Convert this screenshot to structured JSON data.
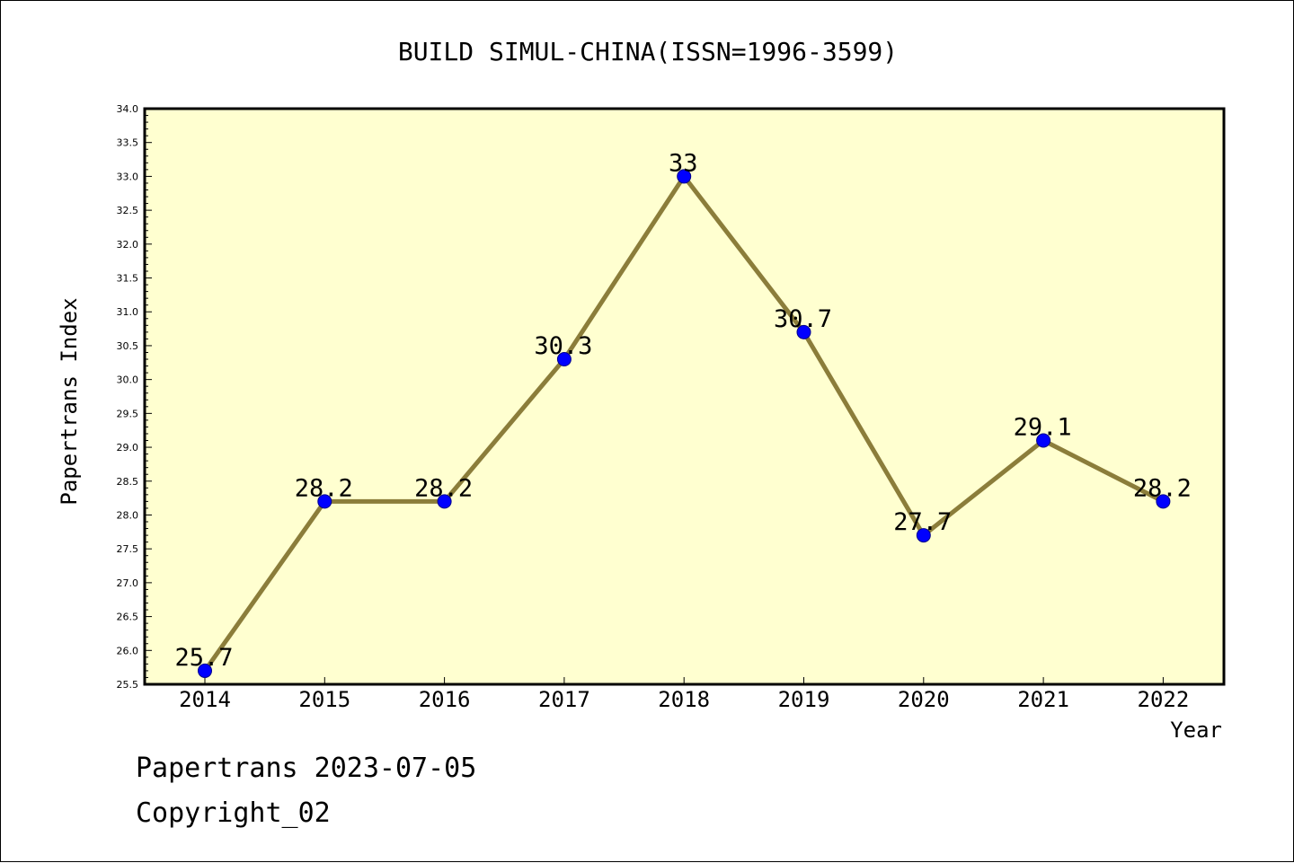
{
  "chart_data": {
    "type": "line",
    "title": "BUILD SIMUL-CHINA(ISSN=1996-3599)",
    "xlabel": "Year",
    "ylabel": "Papertrans Index",
    "categories": [
      "2014",
      "2015",
      "2016",
      "2017",
      "2018",
      "2019",
      "2020",
      "2021",
      "2022"
    ],
    "series": [
      {
        "values": [
          25.7,
          28.2,
          28.2,
          30.3,
          33,
          30.7,
          27.7,
          29.1,
          28.2
        ]
      }
    ],
    "data_labels": [
      "25.7",
      "28.2",
      "28.2",
      "30.3",
      "33",
      "30.7",
      "27.7",
      "29.1",
      "28.2"
    ],
    "ylim": [
      25.5,
      34.0
    ],
    "y_major_step": 0.5,
    "y_tick_labels": [
      "25.5",
      "26.0",
      "26.5",
      "27.0",
      "27.5",
      "28.0",
      "28.5",
      "29.0",
      "29.5",
      "30.0",
      "30.5",
      "31.0",
      "31.5",
      "32.0",
      "32.5",
      "33.0",
      "33.5",
      "34.0"
    ],
    "grid": false,
    "legend": "none"
  },
  "footer": {
    "line1": "Papertrans 2023-07-05",
    "line2": "Copyright_02"
  },
  "colors": {
    "plot_background": "#ffffd0",
    "line": "#8b7d3a",
    "marker": "#0000ff",
    "text": "#000000"
  }
}
